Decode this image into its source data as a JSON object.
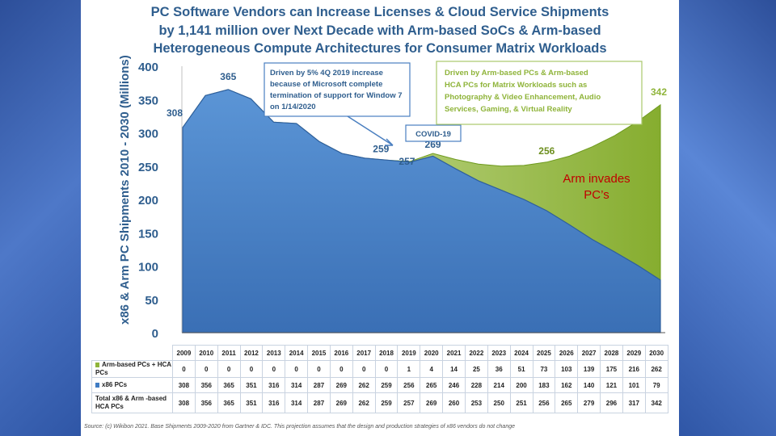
{
  "title_lines": [
    "PC Software Vendors can Increase Licenses & Cloud Service Shipments",
    "by 1,141 million over Next Decade with Arm-based SoCs & Arm-based",
    "Heterogeneous Compute Architectures for Consumer Matrix Workloads"
  ],
  "source": "Source: (c) Wikibon 2021. Base Shipments 2009-2020 from Gartner & IDC. This projection assumes that the design and production strategies of x86 vendors do not change",
  "colors": {
    "x86": "#3f7cc4",
    "arm": "#8fb43a",
    "title": "#2f5e8e",
    "arm_label": "#c00000"
  },
  "chart_data": {
    "type": "area",
    "title": "PC Software Vendors can Increase Licenses & Cloud Service Shipments by 1,141 million over Next Decade with Arm-based SoCs & Arm-based Heterogeneous Compute Architectures for Consumer Matrix Workloads",
    "ylabel": "x86 & Arm PC Shipments 2010 - 2030 (Millions)",
    "xlabel": "",
    "ylim": [
      0,
      400
    ],
    "yticks": [
      0,
      50,
      100,
      150,
      200,
      250,
      300,
      350,
      400
    ],
    "categories": [
      "2009",
      "2010",
      "2011",
      "2012",
      "2013",
      "2014",
      "2015",
      "2016",
      "2017",
      "2018",
      "2019",
      "2020",
      "2021",
      "2022",
      "2023",
      "2024",
      "2025",
      "2026",
      "2027",
      "2028",
      "2029",
      "2030"
    ],
    "series": [
      {
        "name": "Arm-based PCs + HCA PCs",
        "values": [
          0,
          0,
          0,
          0,
          0,
          0,
          0,
          0,
          0,
          0,
          1,
          4,
          14,
          25,
          36,
          51,
          73,
          103,
          139,
          175,
          216,
          262
        ]
      },
      {
        "name": "x86 PCs",
        "values": [
          308,
          356,
          365,
          351,
          316,
          314,
          287,
          269,
          262,
          259,
          256,
          265,
          246,
          228,
          214,
          200,
          183,
          162,
          140,
          121,
          101,
          79
        ]
      },
      {
        "name": "Total x86 & Arm -based HCA PCs",
        "values": [
          308,
          356,
          365,
          351,
          316,
          314,
          287,
          269,
          262,
          259,
          257,
          269,
          260,
          253,
          250,
          251,
          256,
          265,
          279,
          296,
          317,
          342
        ]
      }
    ],
    "data_labels": [
      {
        "text": "308",
        "index": 0
      },
      {
        "text": "365",
        "index": 2
      },
      {
        "text": "259",
        "index": 9
      },
      {
        "text": "257",
        "index": 10
      },
      {
        "text": "269",
        "index": 11
      },
      {
        "text": "256",
        "index": 16
      },
      {
        "text": "342",
        "index": 21
      }
    ],
    "annotations": {
      "win7": "Driven by 5% 4Q 2019 increase because of Microsoft complete termination of support for Window 7 on 1/14/2020",
      "covid": "COVID-19",
      "arm_driver": "Driven by Arm-based PCs & Arm-based HCA PCs for Matrix Workloads such as Photography & Video Enhancement, Audio Services, Gaming, & Virtual Reality",
      "arm_invades": "Arm invades PC’s"
    },
    "table_rows": [
      {
        "label": "Arm-based PCs + HCA PCs",
        "series": 0
      },
      {
        "label": "x86 PCs",
        "series": 1
      },
      {
        "label": "Total x86 & Arm -based HCA PCs",
        "series": 2
      }
    ],
    "grid": false,
    "legend": "none"
  }
}
